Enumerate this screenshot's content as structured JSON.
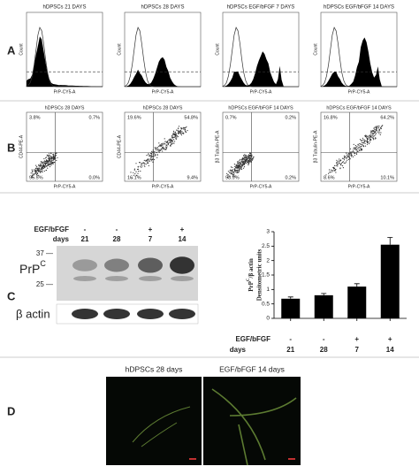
{
  "panel_labels": [
    "A",
    "B",
    "C",
    "D"
  ],
  "panel_a": {
    "plots": [
      {
        "title": "hDPSCs 21 DAYS",
        "y_label": "Count",
        "x_label": "PrP-CY5-A"
      },
      {
        "title": "hDPSCs 28 DAYS",
        "y_label": "Count",
        "x_label": "PrP-CY5-A"
      },
      {
        "title": "hDPSCs EGF/bFGF 7 DAYS",
        "y_label": "Count",
        "x_label": "PrP-CY5-A"
      },
      {
        "title": "hDPSCs EGF/bFGF 14 DAYS",
        "y_label": "Count",
        "x_label": "PrP-CY5-A"
      }
    ]
  },
  "panel_b": {
    "plots": [
      {
        "title": "hDPSCs 28 DAYS",
        "y_label": "CD44-PE-A",
        "x_label": "PrP-CY5-A",
        "quadrants": [
          "3.8%",
          "0.7%",
          "95.5%",
          "0.0%"
        ]
      },
      {
        "title": "hDPSCs 28 DAYS",
        "y_label": "CD44-PE-A",
        "x_label": "PrP-CY5-A",
        "quadrants": [
          "19.6%",
          "54.8%",
          "16.1%",
          "9.4%"
        ]
      },
      {
        "title": "hDPSCs EGF/bFGF 14 DAYS",
        "y_label": "β3 Tubulin-PE-A",
        "x_label": "PrP-CY5-A",
        "quadrants": [
          "0.7%",
          "0.2%",
          "98.9%",
          "0.2%"
        ]
      },
      {
        "title": "hDPSCs EGF/bFGF 14 DAYS",
        "y_label": "β3 Tubulin-PE-A",
        "x_label": "PrP-CY5-A",
        "quadrants": [
          "16.8%",
          "64.2%",
          "8.6%",
          "10.1%"
        ]
      }
    ]
  },
  "blot": {
    "treatment_label": "EGF/bFGF",
    "days_label": "days",
    "treatments": [
      "-",
      "-",
      "+",
      "+"
    ],
    "days": [
      "21",
      "28",
      "7",
      "14"
    ],
    "marker_37": "37 —",
    "marker_25": "25 —",
    "protein": {
      "base": "PrP",
      "sup": "C"
    },
    "loading": "β actin"
  },
  "chart_data": {
    "type": "bar",
    "y_label": {
      "base": "PrP",
      "sup": "C",
      "rest": "/β actin",
      "line2": "Densitometric units"
    },
    "treatment_label": "EGF/bFGF",
    "days_label": "days",
    "treatments": [
      "-",
      "-",
      "+",
      "+"
    ],
    "categories": [
      "21",
      "28",
      "7",
      "14"
    ],
    "values": [
      0.68,
      0.8,
      1.1,
      2.55
    ],
    "errors": [
      0.06,
      0.06,
      0.1,
      0.25
    ],
    "color": "#000000",
    "ylim": [
      0,
      3
    ],
    "yticks": [
      0,
      0.5,
      1,
      1.5,
      2,
      2.5,
      3
    ]
  },
  "panel_d": {
    "titles": [
      "hDPSCs 28 days",
      "EGF/bFGF 14 days"
    ]
  }
}
